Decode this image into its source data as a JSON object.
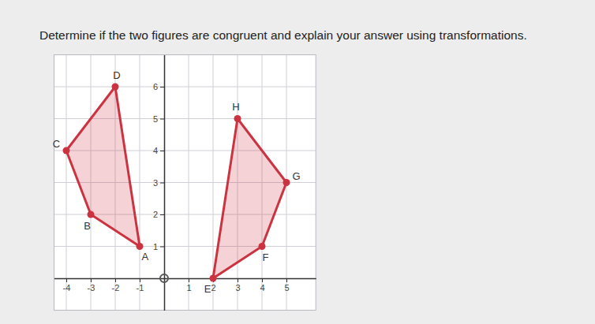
{
  "chart_data": {
    "type": "polygon",
    "title": "Determine if the two figures are congruent and explain your answer using transformations.",
    "xlim": [
      -4.5,
      6.2
    ],
    "ylim": [
      -1,
      7
    ],
    "xticks": [
      -4,
      -3,
      -2,
      -1,
      1,
      2,
      3,
      4,
      5
    ],
    "yticks": [
      1,
      2,
      3,
      4,
      5,
      6
    ],
    "grid": true,
    "polygons": [
      {
        "labels": [
          "A",
          "B",
          "C",
          "D"
        ],
        "x": [
          -1,
          -3,
          -4,
          -2
        ],
        "y": [
          1,
          2,
          4,
          6
        ],
        "color": "#cc3340"
      },
      {
        "labels": [
          "E",
          "F",
          "G",
          "H"
        ],
        "x": [
          2,
          4,
          5,
          3
        ],
        "y": [
          0,
          1,
          3,
          5
        ],
        "color": "#cc3340"
      }
    ]
  }
}
